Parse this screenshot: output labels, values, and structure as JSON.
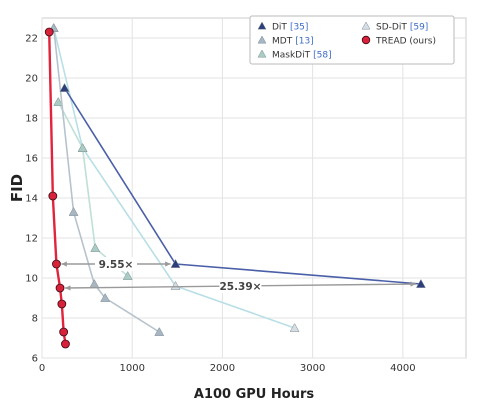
{
  "chart_data": {
    "type": "line",
    "xlabel": "A100 GPU Hours",
    "ylabel": "FID",
    "xlim": [
      0,
      4700
    ],
    "ylim": [
      6,
      23
    ],
    "x_ticks": [
      0,
      1000,
      2000,
      3000,
      4000
    ],
    "y_ticks": [
      6,
      8,
      10,
      12,
      14,
      16,
      18,
      20,
      22
    ],
    "grid": true,
    "legend_position": "top-right",
    "series": [
      {
        "name": "DiT",
        "ref": "[35]",
        "marker": "triangle",
        "color": "#2d3e7a",
        "line_color": "#4a5fa8",
        "points": [
          [
            250,
            19.5
          ],
          [
            1480,
            10.7
          ],
          [
            4200,
            9.7
          ]
        ]
      },
      {
        "name": "MDT",
        "ref": "[13]",
        "marker": "triangle",
        "color": "#a7b6c1",
        "line_color": "#b7c3cc",
        "points": [
          [
            130,
            22.5
          ],
          [
            350,
            13.3
          ],
          [
            580,
            9.7
          ],
          [
            700,
            9.0
          ],
          [
            1300,
            7.3
          ]
        ]
      },
      {
        "name": "MaskDiT",
        "ref": "[58]",
        "marker": "triangle",
        "color": "#a9cdc2",
        "line_color": "#bfe0d7",
        "points": [
          [
            180,
            18.8
          ],
          [
            450,
            16.5
          ],
          [
            590,
            11.5
          ],
          [
            950,
            10.1
          ]
        ]
      },
      {
        "name": "SD-DiT",
        "ref": "[59]",
        "marker": "triangle",
        "color": "#d6dde3",
        "line_color": "#b8dfe6",
        "points": [
          [
            130,
            22.5
          ],
          [
            450,
            16.5
          ],
          [
            1480,
            9.6
          ],
          [
            2800,
            7.5
          ]
        ]
      },
      {
        "name": "TREAD (ours)",
        "ref": "",
        "marker": "circle",
        "color": "#d8213a",
        "line_color": "#e2233c",
        "points": [
          [
            80,
            22.3
          ],
          [
            120,
            14.1
          ],
          [
            160,
            10.7
          ],
          [
            200,
            9.5
          ],
          [
            220,
            8.7
          ],
          [
            240,
            7.3
          ],
          [
            260,
            6.7
          ]
        ]
      }
    ],
    "annotations": [
      {
        "text": "9.55×",
        "from": [
          160,
          10.7
        ],
        "to": [
          1480,
          10.7
        ]
      },
      {
        "text": "25.39×",
        "from": [
          200,
          9.5
        ],
        "to": [
          4200,
          9.7
        ]
      }
    ]
  }
}
